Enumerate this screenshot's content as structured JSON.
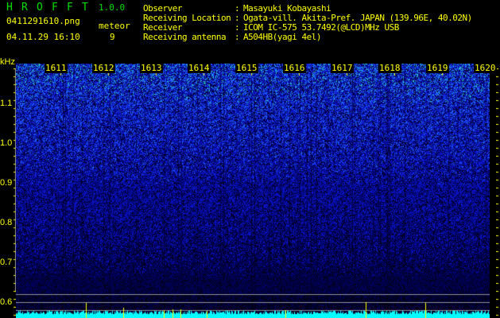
{
  "app": {
    "name_letters": [
      "H",
      "R",
      "O",
      "F",
      "F",
      "T"
    ],
    "version": "1.0.0"
  },
  "file": {
    "name": "0411291610.png",
    "datetime": "04.11.29 16:10"
  },
  "meteor": {
    "label": "meteor",
    "count": "9"
  },
  "info": [
    {
      "label": "Observer",
      "value": "Masayuki Kobayashi"
    },
    {
      "label": "Receiving Location",
      "value": "Ogata-vill. Akita-Pref. JAPAN (139.96E, 40.02N)"
    },
    {
      "label": "Receiver",
      "value": "ICOM IC-575 53.7492(@LCD)MHz USB"
    },
    {
      "label": "Receiving antenna",
      "value": "A504HB(yagi 4el)"
    }
  ],
  "yaxis": {
    "unit": "kHz",
    "ticks": [
      "1.1",
      "1.0",
      "0.9",
      "0.8",
      "0.7",
      "0.6"
    ]
  },
  "xaxis": {
    "ticks": [
      "1611",
      "1612",
      "1613",
      "1614",
      "1615",
      "1616",
      "1617",
      "1618",
      "1619",
      "1620"
    ]
  },
  "colors": {
    "text": "#ffff00",
    "title": "#00e000",
    "histogram": "#00ffff",
    "meteor_marker": "#ffff00",
    "grid": "#909090"
  }
}
